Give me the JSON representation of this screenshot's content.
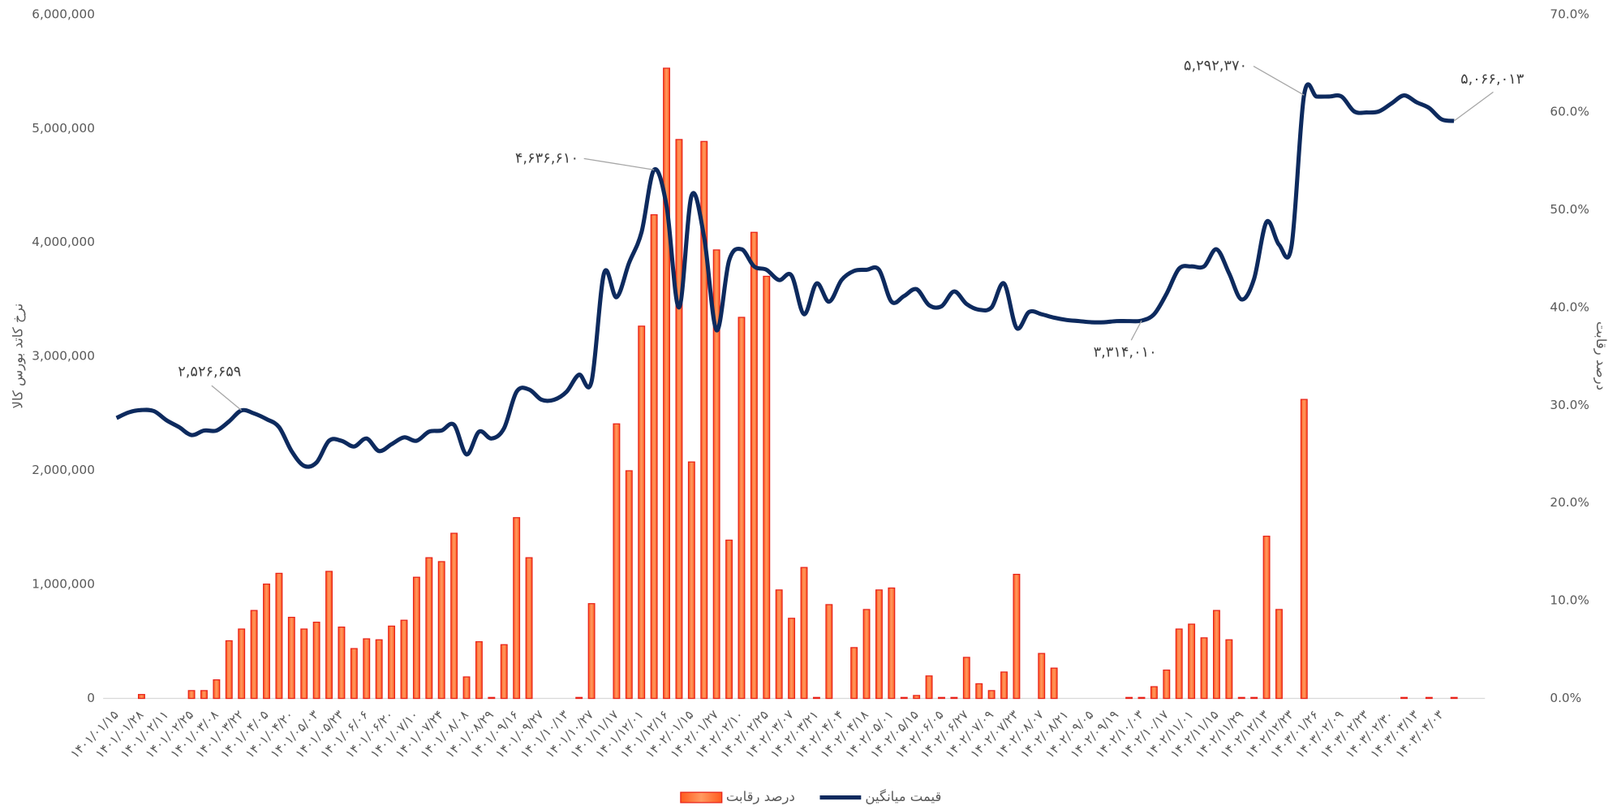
{
  "chart_data": {
    "type": "combo",
    "categories": [
      "۱۴۰۱/۰۱/۱۵",
      null,
      "۱۴۰۱/۰۱/۲۸",
      null,
      "۱۴۰۱/۰۲/۱۱",
      null,
      "۱۴۰۱/۰۲/۲۵",
      null,
      "۱۴۰۱/۰۳/۰۸",
      null,
      "۱۴۰۱/۰۳/۲۲",
      null,
      "۱۴۰۱/۰۴/۰۵",
      null,
      "۱۴۰۱/۰۴/۲۰",
      null,
      "۱۴۰۱/۰۵/۰۳",
      null,
      "۱۴۰۱/۰۵/۲۳",
      null,
      "۱۴۰۱/۰۶/۰۶",
      null,
      "۱۴۰۱/۰۶/۲۰",
      null,
      "۱۴۰۱/۰۷/۱۰",
      null,
      "۱۴۰۱/۰۷/۲۴",
      null,
      "۱۴۰۱/۰۸/۰۸",
      null,
      "۱۴۰۱/۰۸/۲۹",
      null,
      "۱۴۰۱/۰۹/۱۶",
      null,
      "۱۴۰۱/۰۹/۲۷",
      null,
      "۱۴۰۱/۱۰/۱۳",
      null,
      "۱۴۰۱/۱۰/۲۷",
      null,
      "۱۴۰۱/۱۱/۱۷",
      null,
      "۱۴۰۱/۱۲/۰۱",
      null,
      "۱۴۰۱/۱۲/۱۶",
      null,
      "۱۴۰۲/۰۱/۱۵",
      null,
      "۱۴۰۲/۰۱/۲۷",
      null,
      "۱۴۰۲/۰۲/۱۰",
      null,
      "۱۴۰۲/۰۲/۲۵",
      null,
      "۱۴۰۲/۰۳/۰۷",
      null,
      "۱۴۰۲/۰۳/۲۱",
      null,
      "۱۴۰۲/۰۴/۰۴",
      null,
      "۱۴۰۲/۰۴/۱۸",
      null,
      "۱۴۰۲/۰۵/۰۱",
      null,
      "۱۴۰۲/۰۵/۱۵",
      null,
      "۱۴۰۲/۰۶/۰۵",
      null,
      "۱۴۰۲/۰۶/۲۷",
      null,
      "۱۴۰۲/۰۷/۰۹",
      null,
      "۱۴۰۲/۰۷/۲۳",
      null,
      "۱۴۰۲/۰۸/۰۷",
      null,
      "۱۴۰۲/۰۸/۲۱",
      null,
      "۱۴۰۲/۰۹/۰۵",
      null,
      "۱۴۰۲/۰۹/۱۹",
      null,
      "۱۴۰۲/۱۰/۰۳",
      null,
      "۱۴۰۲/۱۰/۱۷",
      null,
      "۱۴۰۲/۱۱/۰۱",
      null,
      "۱۴۰۲/۱۱/۱۵",
      null,
      "۱۴۰۲/۱۱/۲۹",
      null,
      "۱۴۰۲/۱۲/۱۳",
      null,
      "۱۴۰۲/۱۲/۲۳",
      null,
      "۱۴۰۳/۰۱/۲۶",
      null,
      "۱۴۰۳/۰۲/۰۹",
      null,
      "۱۴۰۳/۰۲/۲۳",
      null,
      "۱۴۰۳/۰۲/۳۰",
      null,
      "۱۴۰۳/۰۳/۱۳",
      null,
      "۱۴۰۳/۰۴/۰۳",
      null
    ],
    "series": [
      {
        "name": "درصد رقابت",
        "type": "bar",
        "axis": "y2",
        "color": "#ff7f3f",
        "values": [
          0,
          0,
          0.4,
          0,
          0,
          0,
          0.8,
          0.8,
          1.9,
          5.9,
          7.1,
          9.0,
          11.7,
          12.8,
          8.3,
          7.1,
          7.8,
          13.0,
          7.3,
          5.1,
          6.1,
          6.0,
          7.4,
          8.0,
          12.4,
          14.4,
          14.0,
          16.9,
          2.2,
          5.8,
          0.1,
          5.5,
          18.5,
          14.4,
          0,
          0,
          0,
          0.1,
          9.7,
          0,
          28.1,
          23.3,
          38.1,
          49.5,
          64.5,
          57.2,
          24.2,
          57.0,
          45.9,
          16.2,
          39.0,
          47.7,
          43.2,
          11.1,
          8.2,
          13.4,
          0.1,
          9.6,
          0,
          5.2,
          9.1,
          11.1,
          11.3,
          0.1,
          0.3,
          2.3,
          0.1,
          0.1,
          4.2,
          1.5,
          0.8,
          2.7,
          12.7,
          0,
          4.6,
          3.1,
          0,
          0,
          0,
          0,
          0,
          0.1,
          0.1,
          1.2,
          2.9,
          7.1,
          7.6,
          6.2,
          9.0,
          6.0,
          0.1,
          0.1,
          16.6,
          9.1,
          0,
          30.6,
          0,
          0,
          0,
          0,
          0,
          0,
          0,
          0.1,
          0,
          0.1,
          0,
          0.1
        ]
      },
      {
        "name": "قیمت میانگین",
        "type": "line",
        "axis": "y",
        "color": "#0d2a5e",
        "values": [
          2460000,
          2510000,
          2530000,
          2520000,
          2440000,
          2380000,
          2310000,
          2350000,
          2350000,
          2430000,
          2526659,
          2500000,
          2450000,
          2380000,
          2170000,
          2040000,
          2070000,
          2260000,
          2260000,
          2210000,
          2280000,
          2170000,
          2230000,
          2290000,
          2260000,
          2340000,
          2350000,
          2400000,
          2140000,
          2340000,
          2280000,
          2370000,
          2690000,
          2710000,
          2620000,
          2620000,
          2690000,
          2840000,
          2780000,
          3730000,
          3520000,
          3820000,
          4090000,
          4636610,
          4320000,
          3430000,
          4410000,
          4050000,
          3230000,
          3840000,
          3940000,
          3790000,
          3760000,
          3670000,
          3710000,
          3370000,
          3640000,
          3480000,
          3670000,
          3750000,
          3760000,
          3760000,
          3480000,
          3530000,
          3590000,
          3450000,
          3440000,
          3570000,
          3460000,
          3410000,
          3430000,
          3640000,
          3250000,
          3390000,
          3370000,
          3340000,
          3320000,
          3310000,
          3300000,
          3300000,
          3310000,
          3310000,
          3314010,
          3370000,
          3550000,
          3770000,
          3790000,
          3790000,
          3940000,
          3730000,
          3500000,
          3680000,
          4180000,
          3980000,
          3970000,
          5292370,
          5280000,
          5280000,
          5280000,
          5150000,
          5140000,
          5150000,
          5220000,
          5290000,
          5230000,
          5180000,
          5080000,
          5066013
        ],
        "value_labels": [
          null,
          null,
          null,
          null,
          null,
          null,
          null,
          null,
          null,
          null,
          "۲,۵۲۶,۶۵۹",
          null,
          null,
          null,
          null,
          null,
          null,
          null,
          null,
          null,
          null,
          null,
          null,
          null,
          null,
          null,
          null,
          null,
          null,
          null,
          null,
          null,
          null,
          null,
          null,
          null,
          null,
          null,
          null,
          null,
          null,
          null,
          null,
          "۴,۶۳۶,۶۱۰",
          null,
          null,
          null,
          null,
          null,
          null,
          null,
          null,
          null,
          null,
          null,
          null,
          null,
          null,
          null,
          null,
          null,
          null,
          null,
          null,
          null,
          null,
          null,
          null,
          null,
          null,
          null,
          null,
          null,
          null,
          null,
          null,
          null,
          null,
          null,
          null,
          null,
          null,
          "۳,۳۱۴,۰۱۰",
          null,
          null,
          null,
          null,
          null,
          null,
          null,
          null,
          null,
          null,
          null,
          null,
          "۵,۲۹۲,۳۷۰",
          null,
          null,
          null,
          null,
          null,
          null,
          null,
          null,
          null,
          null,
          null,
          "۵,۰۶۶,۰۱۳"
        ]
      }
    ],
    "y_label": "نرخ کاتد بورس کالا",
    "y2_label": "درصد رقابت",
    "ylim": [
      0,
      6000000
    ],
    "yticks": [
      0,
      {
        "value": 1000000,
        "label": "1,000,000"
      },
      {
        "value": 2000000,
        "label": "2,000,000"
      },
      {
        "value": 3000000,
        "label": "3,000,000"
      },
      {
        "value": 4000000,
        "label": "4,000,000"
      },
      {
        "value": 5000000,
        "label": "5,000,000"
      },
      {
        "value": 6000000,
        "label": "6,000,000"
      }
    ],
    "y2lim": [
      0,
      70
    ],
    "y2ticks": [
      {
        "value": 0,
        "label": "0.0%"
      },
      {
        "value": 10,
        "label": "10.0%"
      },
      {
        "value": 20,
        "label": "20.0%"
      },
      {
        "value": 30,
        "label": "30.0%"
      },
      {
        "value": 40,
        "label": "40.0%"
      },
      {
        "value": 50,
        "label": "50.0%"
      },
      {
        "value": 60,
        "label": "60.0%"
      },
      {
        "value": 70,
        "label": "70.0%"
      }
    ],
    "legend": "bottom"
  }
}
